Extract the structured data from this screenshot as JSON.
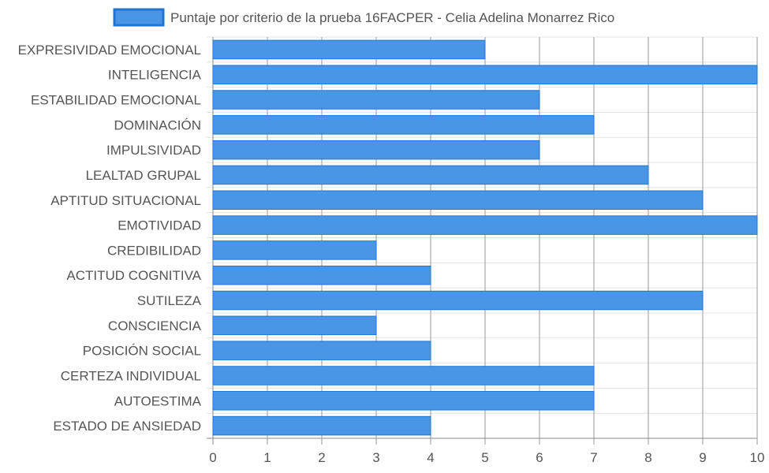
{
  "chart_data": {
    "type": "bar",
    "orientation": "horizontal",
    "categories": [
      "EXPRESIVIDAD EMOCIONAL",
      "INTELIGENCIA",
      "ESTABILIDAD EMOCIONAL",
      "DOMINACIÓN",
      "IMPULSIVIDAD",
      "LEALTAD GRUPAL",
      "APTITUD SITUACIONAL",
      "EMOTIVIDAD",
      "CREDIBILIDAD",
      "ACTITUD COGNITIVA",
      "SUTILEZA",
      "CONSCIENCIA",
      "POSICIÓN SOCIAL",
      "CERTEZA INDIVIDUAL",
      "AUTOESTIMA",
      "ESTADO DE ANSIEDAD"
    ],
    "series": [
      {
        "name": "Puntaje por criterio de la prueba 16FACPER - Celia Adelina Monarrez Rico",
        "values": [
          5,
          10,
          6,
          7,
          6,
          8,
          9,
          10,
          3,
          4,
          9,
          3,
          4,
          7,
          7,
          4
        ],
        "color": "#4a96e6",
        "border_color": "#1f76d2"
      }
    ],
    "xlim": [
      0,
      10
    ],
    "x_ticks": [
      "0",
      "1",
      "2",
      "3",
      "4",
      "5",
      "6",
      "7",
      "8",
      "9",
      "10"
    ],
    "xlabel": "",
    "ylabel": "",
    "grid": true,
    "legend_position": "top-center",
    "colors": {
      "grid": "#e4e4e4",
      "axis": "#888888",
      "label_text": "#555555"
    }
  }
}
